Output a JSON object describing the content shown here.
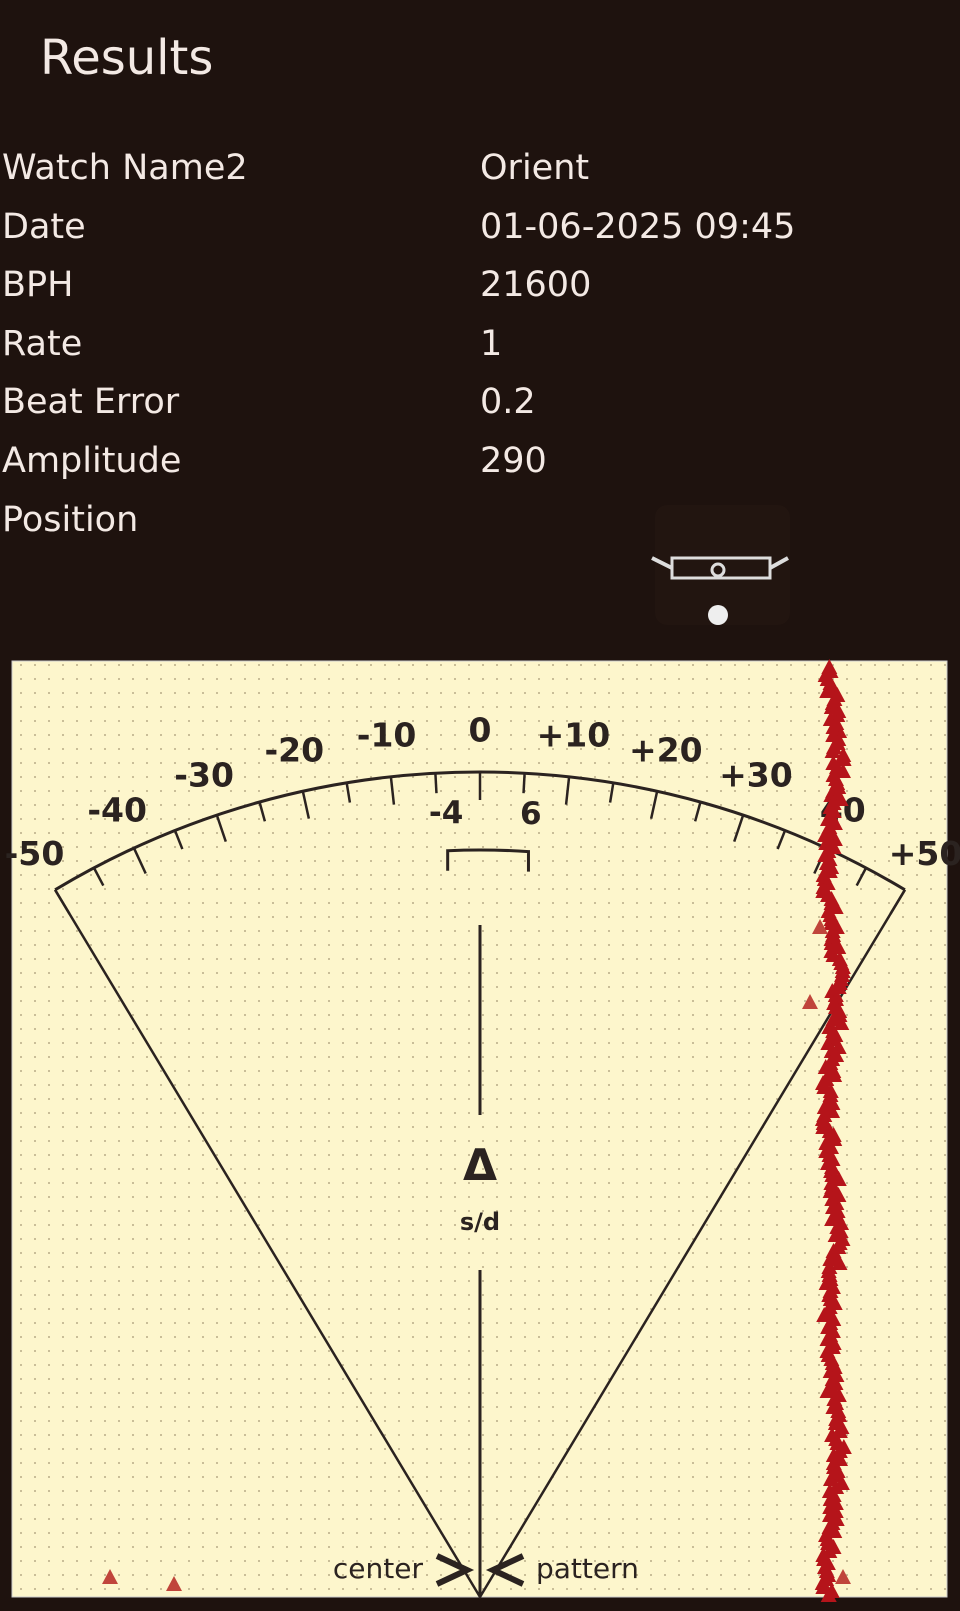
{
  "header": {
    "title": "Results"
  },
  "rows": [
    [
      "Watch Name2",
      "Orient"
    ],
    [
      "Date",
      "01-06-2025 09:45"
    ],
    [
      "BPH",
      "21600"
    ],
    [
      "Rate",
      "1"
    ],
    [
      "Beat Error",
      "0.2"
    ],
    [
      "Amplitude",
      "290"
    ],
    [
      "Position",
      ""
    ]
  ],
  "dial": {
    "scale_labels": [
      "-50",
      "-40",
      "-30",
      "-20",
      "-10",
      "0",
      "+10",
      "+20",
      "+30",
      "40",
      "+50"
    ],
    "window_labels": [
      "-4",
      "6"
    ],
    "symbol": "Δ",
    "unit": "s/d",
    "left_label": "center",
    "right_label": "pattern"
  }
}
